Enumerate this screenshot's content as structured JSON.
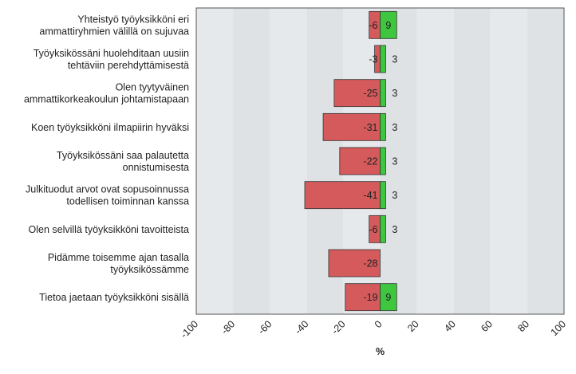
{
  "chart_data": {
    "type": "bar",
    "orientation": "horizontal",
    "stacked": "diverging",
    "categories": [
      "Yhteistyö työyksikköni eri|ammattiryhmien välillä on sujuvaa",
      "Työyksikössäni huolehditaan uusiin|tehtäviin perehdyttämisestä",
      "Olen tyytyväinen|ammattikorkeakoulun johtamistapaan",
      "Koen työyksikköni ilmapiirin hyväksi",
      "Työyksikössäni saa palautetta|onnistumisesta",
      "Julkituodut arvot ovat sopusoinnussa|todellisen toiminnan kanssa",
      "Olen selvillä työyksikköni tavoitteista",
      "Pidämme toisemme ajan tasalla|työyksikössämme",
      "Tietoa jaetaan työyksikköni sisällä"
    ],
    "series": [
      {
        "values": [
          -6,
          -3,
          -25,
          -31,
          -22,
          -41,
          -6,
          -28,
          -19
        ],
        "color": "#d45a5c"
      },
      {
        "values": [
          9,
          3,
          3,
          3,
          3,
          3,
          3,
          0,
          9
        ],
        "color": "#3ec63e"
      }
    ],
    "x_ticks": [
      "-100",
      "-80",
      "-60",
      "-40",
      "-20",
      "0",
      "20",
      "40",
      "60",
      "80",
      "100"
    ],
    "xlim": [
      -100,
      100
    ],
    "xlabel": "%",
    "grid": "alternating vertical bands",
    "legend": "none"
  }
}
